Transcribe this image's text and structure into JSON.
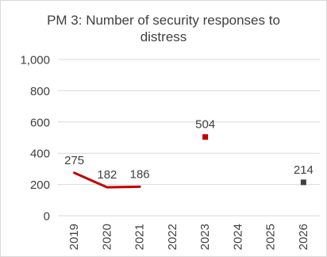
{
  "chart_data": {
    "type": "line",
    "title_lines": [
      "PM 3: Number of security responses to",
      "distress"
    ],
    "title": "PM 3: Number of security responses to distress",
    "categories": [
      "2019",
      "2020",
      "2021",
      "2022",
      "2023",
      "2024",
      "2025",
      "2026"
    ],
    "series": [
      {
        "values": [
          275,
          182,
          186,
          null,
          null,
          null,
          null,
          null
        ],
        "color": "#c00000",
        "style": "line"
      },
      {
        "values": [
          null,
          null,
          null,
          null,
          504,
          null,
          null,
          null
        ],
        "color": "#c00000",
        "style": "marker"
      },
      {
        "values": [
          null,
          null,
          null,
          null,
          null,
          null,
          null,
          214
        ],
        "color": "#404040",
        "style": "marker"
      }
    ],
    "data_labels": [
      {
        "category": "2019",
        "value": 275,
        "text": "275"
      },
      {
        "category": "2020",
        "value": 182,
        "text": "182"
      },
      {
        "category": "2021",
        "value": 186,
        "text": "186"
      },
      {
        "category": "2023",
        "value": 504,
        "text": "504"
      },
      {
        "category": "2026",
        "value": 214,
        "text": "214"
      }
    ],
    "ylim": [
      0,
      1000
    ],
    "yticks": [
      0,
      200,
      400,
      600,
      800,
      1000
    ],
    "ytick_labels": [
      "0",
      "200",
      "400",
      "600",
      "800",
      "1,000"
    ],
    "grid": true,
    "legend": "none",
    "xlabel": "",
    "ylabel": ""
  }
}
